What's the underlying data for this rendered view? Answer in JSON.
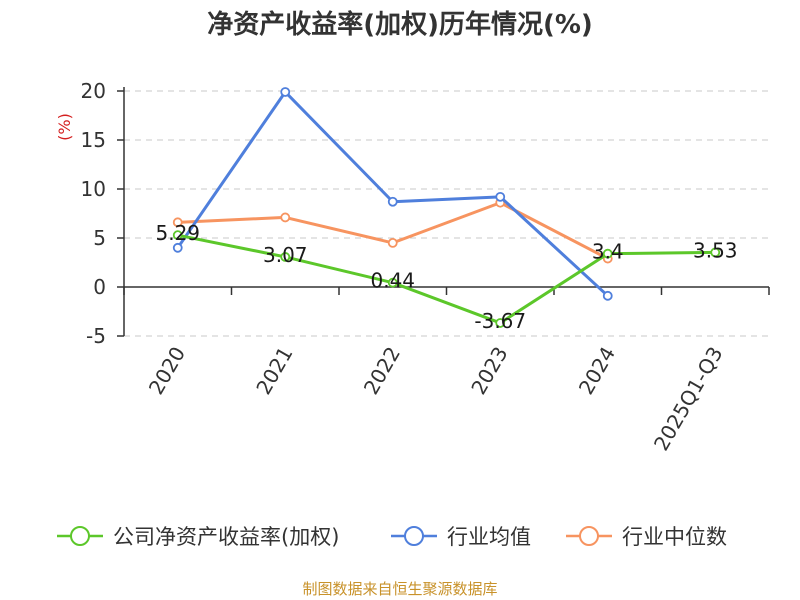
{
  "chart_data": {
    "type": "line",
    "title": "净资产收益率(加权)历年情况(%)",
    "ylabel": "(%)",
    "categories": [
      "2020",
      "2021",
      "2022",
      "2023",
      "2024",
      "2025Q1-Q3"
    ],
    "ylim": [
      -5,
      20
    ],
    "yticks": [
      -5,
      0,
      5,
      10,
      15,
      20
    ],
    "grid": true,
    "legend_position": "bottom",
    "series": [
      {
        "name": "公司净资产收益率(加权)",
        "color": "#5cc72a",
        "values": [
          5.29,
          3.07,
          0.44,
          -3.67,
          3.4,
          3.53
        ],
        "labels": [
          "5.29",
          "3.07",
          "0.44",
          "-3.67",
          "3.4",
          "3.53"
        ]
      },
      {
        "name": "行业均值",
        "color": "#4f7fdc",
        "values": [
          4.0,
          19.9,
          8.7,
          9.2,
          -0.9,
          null
        ]
      },
      {
        "name": "行业中位数",
        "color": "#f79460",
        "values": [
          6.6,
          7.1,
          4.5,
          8.6,
          2.9,
          null
        ]
      }
    ]
  },
  "source": "制图数据来自恒生聚源数据库"
}
